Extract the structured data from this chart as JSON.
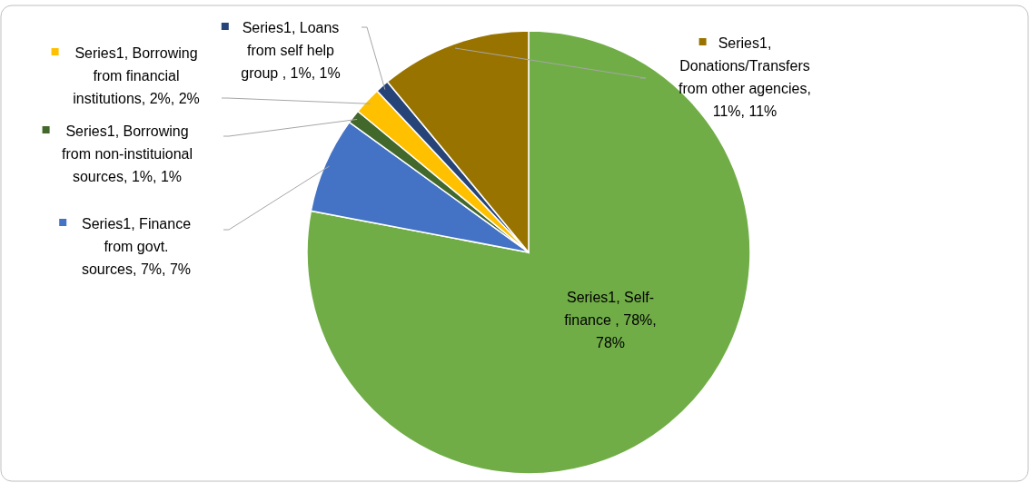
{
  "chart_data": {
    "type": "pie",
    "categories": [
      "Series1, Self-finance , 78%, 78%",
      "Series1, Finance from govt. sources, 7%, 7%",
      "Series1, Borrowing from non-instituional sources, 1%, 1%",
      "Series1, Borrowing from financial institutions, 2%, 2%",
      "Series1, Loans from self help group , 1%, 1%",
      "Series1, Donations/Transfers from other agencies, 11%, 11%"
    ],
    "values": [
      78,
      7,
      1,
      2,
      1,
      11
    ],
    "legend": "top left",
    "colors": [
      "#70ad47",
      "#4472c4",
      "#43682b",
      "#ffc000",
      "#264478",
      "#997300"
    ]
  }
}
